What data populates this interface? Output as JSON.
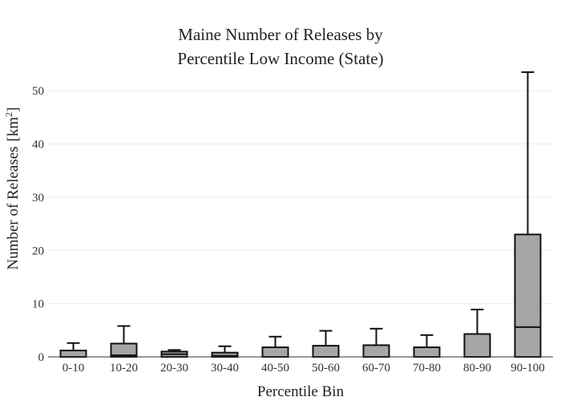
{
  "chart_data": {
    "type": "box",
    "title_lines": [
      "Maine Number of Releases by",
      "Percentile Low Income (State)"
    ],
    "xlabel": "Percentile Bin",
    "ylabel": "Number of Releases",
    "ylabel_unit_base": "[km",
    "ylabel_unit_sup": "2",
    "ylabel_unit_close": "]",
    "ylim": [
      0,
      55
    ],
    "yticks": [
      0,
      10,
      20,
      30,
      40,
      50
    ],
    "categories": [
      "0-10",
      "10-20",
      "20-30",
      "30-40",
      "40-50",
      "50-60",
      "60-70",
      "70-80",
      "80-90",
      "90-100"
    ],
    "boxes": [
      {
        "min": 0,
        "q1": 0,
        "median": 0,
        "q3": 1.2,
        "max": 2.6
      },
      {
        "min": 0,
        "q1": 0,
        "median": 0.3,
        "q3": 2.5,
        "max": 5.8
      },
      {
        "min": 0,
        "q1": 0,
        "median": 0.5,
        "q3": 1.0,
        "max": 1.3
      },
      {
        "min": 0,
        "q1": 0,
        "median": 0.2,
        "q3": 0.8,
        "max": 2.0
      },
      {
        "min": 0,
        "q1": 0,
        "median": 0,
        "q3": 1.8,
        "max": 3.8
      },
      {
        "min": 0,
        "q1": 0,
        "median": 0,
        "q3": 2.1,
        "max": 4.9
      },
      {
        "min": 0,
        "q1": 0,
        "median": 0,
        "q3": 2.2,
        "max": 5.3
      },
      {
        "min": 0,
        "q1": 0,
        "median": 0,
        "q3": 1.8,
        "max": 4.1
      },
      {
        "min": 0,
        "q1": 0,
        "median": 0,
        "q3": 4.3,
        "max": 8.9
      },
      {
        "min": 0,
        "q1": 0,
        "median": 5.6,
        "q3": 23.0,
        "max": 53.5
      }
    ],
    "grid": true,
    "colors": {
      "box_fill": "#a6a6a6",
      "box_stroke": "#111111"
    }
  }
}
